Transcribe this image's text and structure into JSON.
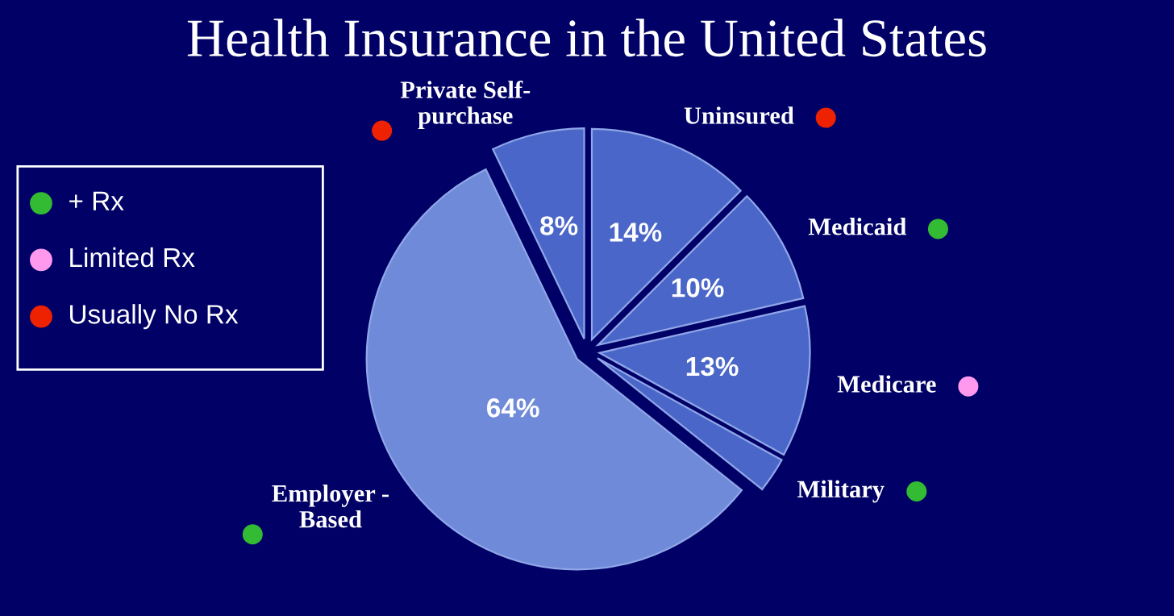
{
  "chart_data": {
    "type": "pie",
    "title": "Health Insurance in the United States",
    "categories": [
      "Uninsured",
      "Medicaid",
      "Medicare",
      "Military",
      "Employer - Based",
      "Private Self-purchase"
    ],
    "values": [
      14,
      10,
      13,
      3,
      64,
      8
    ],
    "value_labels": [
      "14%",
      "10%",
      "13%",
      null,
      "64%",
      "8%"
    ],
    "colors": [
      "#4a66c8",
      "#4a66c8",
      "#4a66c8",
      "#4a66c8",
      "#6f8ad8",
      "#4a66c8"
    ],
    "annotations": [
      "+ Rx",
      "Limited Rx",
      "Usually No Rx"
    ]
  }
}
